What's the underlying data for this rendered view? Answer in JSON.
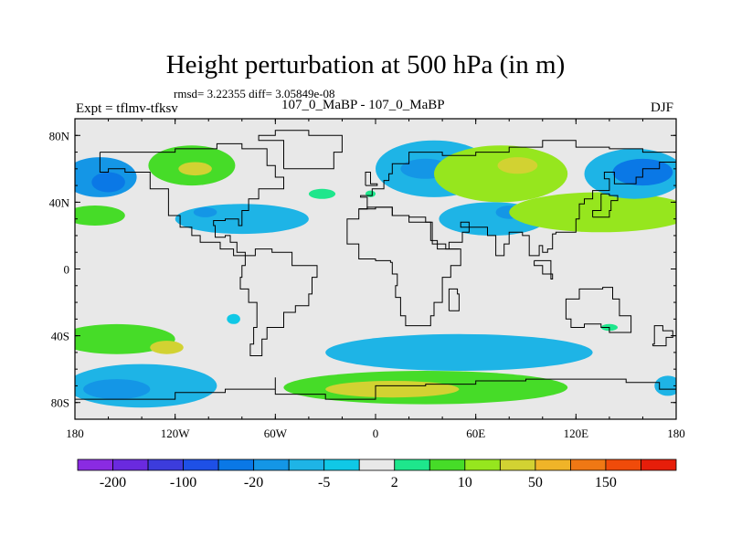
{
  "chart_data": {
    "type": "heatmap",
    "title": "Height perturbation at 500 hPa (in m)",
    "stats_line": "rmsd= 3.22355 diff= 3.05849e-08",
    "experiment_label": "Expt = tflmv-tfksv",
    "subtitle": "107_0_MaBP - 107_0_MaBP",
    "season": "DJF",
    "xlim": [
      -180,
      180
    ],
    "ylim": [
      -90,
      90
    ],
    "x_ticks": [
      {
        "value": -180,
        "label": "180"
      },
      {
        "value": -120,
        "label": "120W"
      },
      {
        "value": -60,
        "label": "60W"
      },
      {
        "value": 0,
        "label": "0"
      },
      {
        "value": 60,
        "label": "60E"
      },
      {
        "value": 120,
        "label": "120E"
      },
      {
        "value": 180,
        "label": "180"
      }
    ],
    "y_ticks": [
      {
        "value": 80,
        "label": "80N"
      },
      {
        "value": 40,
        "label": "40N"
      },
      {
        "value": 0,
        "label": "0"
      },
      {
        "value": -40,
        "label": "40S"
      },
      {
        "value": -80,
        "label": "80S"
      }
    ],
    "levels": [
      -200,
      -150,
      -100,
      -50,
      -20,
      -10,
      -5,
      -2,
      2,
      5,
      10,
      20,
      50,
      100,
      150,
      200
    ],
    "colors": [
      "#8a2be2",
      "#6a2adf",
      "#3c3cdc",
      "#1e50e6",
      "#0a78e6",
      "#1496e6",
      "#1eb4e6",
      "#10c8e6",
      "#e8e8e8",
      "#1ee68c",
      "#46dc28",
      "#96e61e",
      "#d2d232",
      "#f0b428",
      "#f07814",
      "#f04b0a",
      "#e61e0a"
    ],
    "colorbar_labels": [
      {
        "after_level": -200,
        "label": "-200"
      },
      {
        "after_level": -100,
        "label": "-100"
      },
      {
        "after_level": -20,
        "label": "-20"
      },
      {
        "after_level": -5,
        "label": "-5"
      },
      {
        "after_level": 2,
        "label": "2"
      },
      {
        "after_level": 10,
        "label": "10"
      },
      {
        "after_level": 50,
        "label": "50"
      },
      {
        "after_level": 150,
        "label": "150"
      }
    ],
    "anomaly_regions": [
      {
        "lon": -165,
        "lat": 55,
        "rx": 22,
        "ry": 12,
        "value": -12
      },
      {
        "lon": -160,
        "lat": 52,
        "rx": 10,
        "ry": 6,
        "value": -25
      },
      {
        "lon": -168,
        "lat": 32,
        "rx": 18,
        "ry": 6,
        "value": 8
      },
      {
        "lon": -110,
        "lat": 62,
        "rx": 26,
        "ry": 12,
        "value": 9
      },
      {
        "lon": -108,
        "lat": 60,
        "rx": 10,
        "ry": 4,
        "value": 22
      },
      {
        "lon": -80,
        "lat": 30,
        "rx": 40,
        "ry": 9,
        "value": -7
      },
      {
        "lon": -102,
        "lat": 34,
        "rx": 7,
        "ry": 3,
        "value": -15
      },
      {
        "lon": -32,
        "lat": 45,
        "rx": 8,
        "ry": 3,
        "value": 4
      },
      {
        "lon": -3,
        "lat": 45,
        "rx": 3,
        "ry": 2,
        "value": 4
      },
      {
        "lon": 35,
        "lat": 60,
        "rx": 35,
        "ry": 17,
        "value": -8
      },
      {
        "lon": 30,
        "lat": 60,
        "rx": 15,
        "ry": 6,
        "value": -18
      },
      {
        "lon": 75,
        "lat": 57,
        "rx": 40,
        "ry": 17,
        "value": 10
      },
      {
        "lon": 85,
        "lat": 62,
        "rx": 12,
        "ry": 5,
        "value": 25
      },
      {
        "lon": 70,
        "lat": 30,
        "rx": 32,
        "ry": 10,
        "value": -8
      },
      {
        "lon": 80,
        "lat": 34,
        "rx": 8,
        "ry": 4,
        "value": -18
      },
      {
        "lon": 135,
        "lat": 34,
        "rx": 55,
        "ry": 12,
        "value": 10
      },
      {
        "lon": 155,
        "lat": 57,
        "rx": 30,
        "ry": 15,
        "value": -10
      },
      {
        "lon": 160,
        "lat": 58,
        "rx": 18,
        "ry": 8,
        "value": -22
      },
      {
        "lon": -155,
        "lat": -42,
        "rx": 35,
        "ry": 9,
        "value": 8
      },
      {
        "lon": -125,
        "lat": -47,
        "rx": 10,
        "ry": 4,
        "value": 20
      },
      {
        "lon": -140,
        "lat": -70,
        "rx": 45,
        "ry": 13,
        "value": -8
      },
      {
        "lon": -155,
        "lat": -72,
        "rx": 20,
        "ry": 6,
        "value": -16
      },
      {
        "lon": -85,
        "lat": -30,
        "rx": 4,
        "ry": 3,
        "value": -4
      },
      {
        "lon": 50,
        "lat": -50,
        "rx": 80,
        "ry": 11,
        "value": -8
      },
      {
        "lon": 30,
        "lat": -71,
        "rx": 85,
        "ry": 10,
        "value": 9
      },
      {
        "lon": 10,
        "lat": -72,
        "rx": 40,
        "ry": 5,
        "value": 22
      },
      {
        "lon": 140,
        "lat": -35,
        "rx": 5,
        "ry": 2,
        "value": 4
      },
      {
        "lon": 175,
        "lat": -70,
        "rx": 8,
        "ry": 6,
        "value": -8
      }
    ]
  }
}
